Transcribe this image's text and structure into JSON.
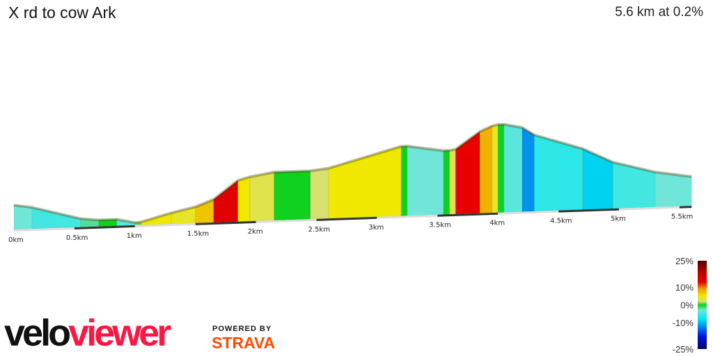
{
  "header": {
    "title": "X rd to cow Ark",
    "summary": "5.6 km at 0.2%"
  },
  "chart_data": {
    "type": "area",
    "title": "X rd to cow Ark",
    "xlabel": "",
    "ylabel": "",
    "xlim": [
      0,
      5.6
    ],
    "x_ticks": [
      "0km",
      "0.5km",
      "1km",
      "1.5km",
      "2km",
      "2.5km",
      "3km",
      "3.5km",
      "4km",
      "4.5km",
      "5km",
      "5.5km"
    ],
    "x_tick_values": [
      0,
      0.5,
      1,
      1.5,
      2,
      2.5,
      3,
      3.5,
      4,
      4.5,
      5,
      5.5
    ],
    "grid": false,
    "segments": [
      {
        "from": 0,
        "to": 0.15,
        "grade": -3
      },
      {
        "from": 0.15,
        "to": 0.55,
        "grade": -5
      },
      {
        "from": 0.55,
        "to": 0.7,
        "grade": -2
      },
      {
        "from": 0.7,
        "to": 0.85,
        "grade": 0
      },
      {
        "from": 0.85,
        "to": 1.0,
        "grade": -4
      },
      {
        "from": 1.0,
        "to": 1.05,
        "grade": 1
      },
      {
        "from": 1.05,
        "to": 1.3,
        "grade": 5
      },
      {
        "from": 1.3,
        "to": 1.5,
        "grade": 4
      },
      {
        "from": 1.5,
        "to": 1.65,
        "grade": 7
      },
      {
        "from": 1.65,
        "to": 1.85,
        "grade": 14
      },
      {
        "from": 1.85,
        "to": 1.95,
        "grade": 5
      },
      {
        "from": 1.95,
        "to": 2.15,
        "grade": 3
      },
      {
        "from": 2.15,
        "to": 2.45,
        "grade": 0
      },
      {
        "from": 2.45,
        "to": 2.6,
        "grade": 2
      },
      {
        "from": 2.6,
        "to": 3.2,
        "grade": 5
      },
      {
        "from": 3.2,
        "to": 3.25,
        "grade": 0
      },
      {
        "from": 3.25,
        "to": 3.55,
        "grade": -3
      },
      {
        "from": 3.55,
        "to": 3.6,
        "grade": 0
      },
      {
        "from": 3.6,
        "to": 3.65,
        "grade": 3
      },
      {
        "from": 3.65,
        "to": 3.85,
        "grade": 13
      },
      {
        "from": 3.85,
        "to": 3.95,
        "grade": 8
      },
      {
        "from": 3.95,
        "to": 4.0,
        "grade": 4
      },
      {
        "from": 4.0,
        "to": 4.05,
        "grade": 0
      },
      {
        "from": 4.05,
        "to": 4.2,
        "grade": -4
      },
      {
        "from": 4.2,
        "to": 4.3,
        "grade": -12
      },
      {
        "from": 4.3,
        "to": 4.7,
        "grade": -6
      },
      {
        "from": 4.7,
        "to": 4.95,
        "grade": -9
      },
      {
        "from": 4.95,
        "to": 5.3,
        "grade": -5
      },
      {
        "from": 5.3,
        "to": 5.6,
        "grade": -3
      }
    ],
    "legend": {
      "placement": "bottom-right",
      "labels": [
        "25%",
        "10%",
        "0%",
        "-10%",
        "-25%"
      ],
      "stops": [
        {
          "grade": -25,
          "color": "#0a0a5a"
        },
        {
          "grade": -18,
          "color": "#0010e0"
        },
        {
          "grade": -12,
          "color": "#0090f0"
        },
        {
          "grade": -8,
          "color": "#00e8f0"
        },
        {
          "grade": -3,
          "color": "#70e6d8"
        },
        {
          "grade": 0,
          "color": "#10d020"
        },
        {
          "grade": 2,
          "color": "#d8e070"
        },
        {
          "grade": 5,
          "color": "#f0e800"
        },
        {
          "grade": 9,
          "color": "#f0a000"
        },
        {
          "grade": 13,
          "color": "#e80000"
        },
        {
          "grade": 18,
          "color": "#c00000"
        },
        {
          "grade": 25,
          "color": "#500000"
        }
      ]
    }
  },
  "branding": {
    "logo_a": "velo",
    "logo_b": "viewer",
    "powered": "POWERED BY",
    "strava": "STRAVA"
  }
}
